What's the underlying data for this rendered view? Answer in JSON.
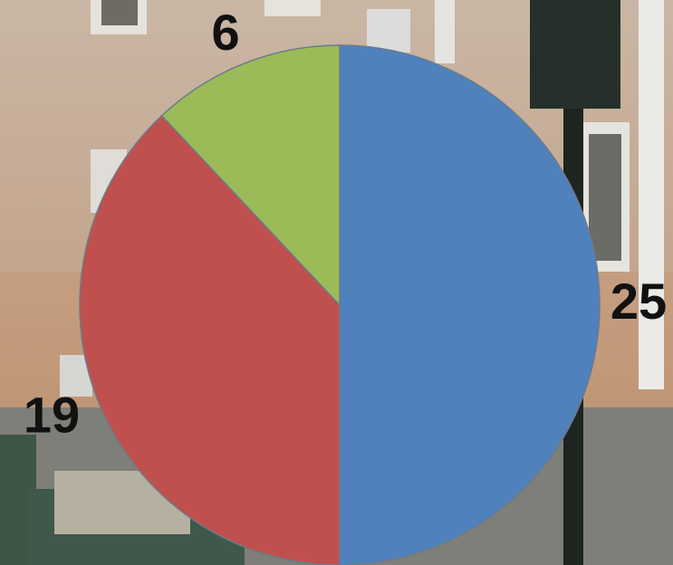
{
  "chart_data": {
    "type": "pie",
    "values": [
      25,
      19,
      6
    ],
    "colors": [
      "#4f81bd",
      "#c0504d",
      "#9bbb59"
    ]
  }
}
